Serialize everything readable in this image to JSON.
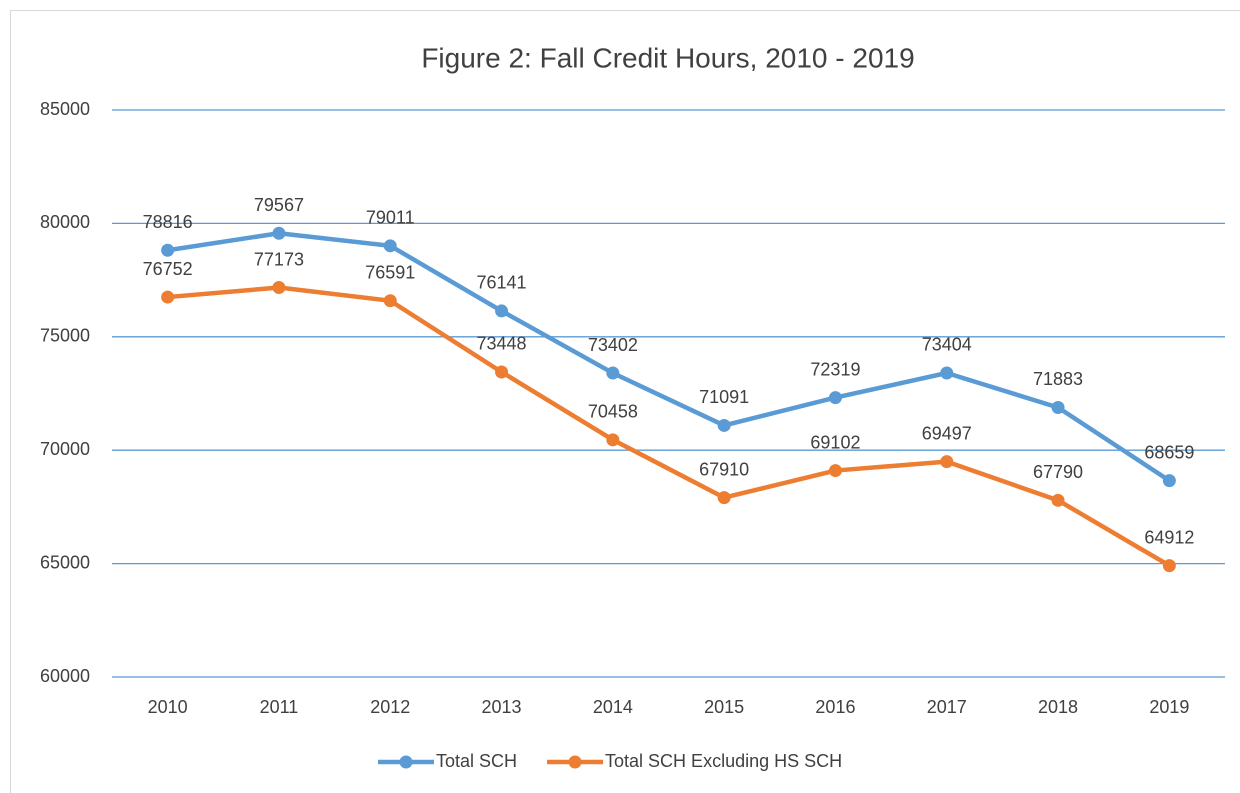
{
  "chart_data": {
    "type": "line",
    "title": "Figure 2: Fall Credit Hours, 2010 - 2019",
    "categories": [
      "2010",
      "2011",
      "2012",
      "2013",
      "2014",
      "2015",
      "2016",
      "2017",
      "2018",
      "2019"
    ],
    "series": [
      {
        "name": "Total SCH",
        "color": "#5b9bd5",
        "values": [
          78816,
          79567,
          79011,
          76141,
          73402,
          71091,
          72319,
          73404,
          71883,
          68659
        ]
      },
      {
        "name": "Total SCH Excluding HS SCH",
        "color": "#ed7d31",
        "values": [
          76752,
          77173,
          76591,
          73448,
          70458,
          67910,
          69102,
          69497,
          67790,
          64912
        ]
      }
    ],
    "ylim": [
      60000,
      85000
    ],
    "yticks": [
      60000,
      65000,
      70000,
      75000,
      80000,
      85000
    ],
    "grid": true,
    "legend": "bottom"
  }
}
